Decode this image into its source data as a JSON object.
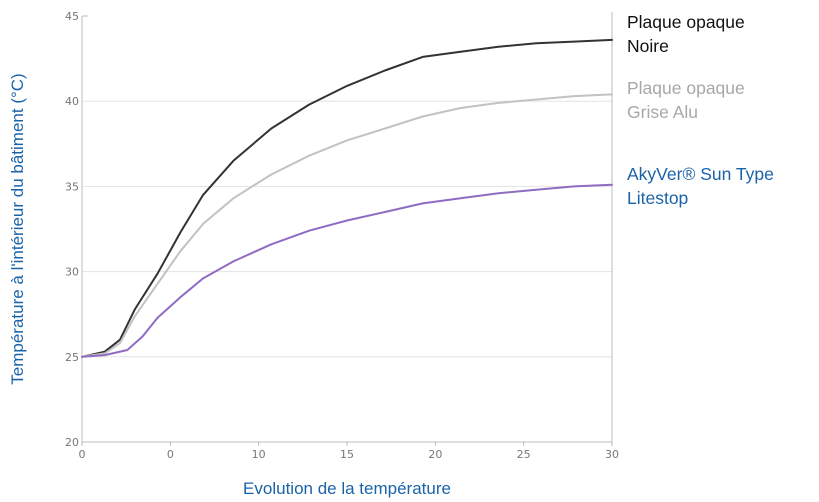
{
  "chart_data": {
    "type": "line",
    "xlabel": "Evolution de la température",
    "ylabel": "Température à l'intérieur du bâtiment (°C)",
    "xlim": [
      -5,
      30
    ],
    "ylim": [
      20,
      45
    ],
    "x_tick_labels": [
      "0",
      "0",
      "10",
      "15",
      "20",
      "25",
      "30"
    ],
    "y_tick_labels": [
      "20",
      "25",
      "30",
      "35",
      "40",
      "45"
    ],
    "grid": "horizontal",
    "legend_position": "right",
    "series": [
      {
        "name": "Plaque opaque Noire",
        "legend_lines": [
          "Plaque opaque",
          "Noire"
        ],
        "color": "#333333",
        "points": [
          [
            -5,
            25
          ],
          [
            -3.5,
            25.3
          ],
          [
            -2.5,
            26
          ],
          [
            -1.5,
            27.8
          ],
          [
            0,
            29.9
          ],
          [
            1.5,
            32.3
          ],
          [
            3,
            34.5
          ],
          [
            5,
            36.5
          ],
          [
            7.5,
            38.4
          ],
          [
            10,
            39.8
          ],
          [
            12.5,
            40.9
          ],
          [
            15,
            41.8
          ],
          [
            17.5,
            42.6
          ],
          [
            20,
            42.9
          ],
          [
            22.5,
            43.2
          ],
          [
            25,
            43.4
          ],
          [
            27.5,
            43.5
          ],
          [
            30,
            43.6
          ]
        ]
      },
      {
        "name": "Plaque opaque Grise Alu",
        "legend_lines": [
          "Plaque opaque",
          "Grise Alu"
        ],
        "color": "#c2c2c2",
        "points": [
          [
            -5,
            25
          ],
          [
            -3.5,
            25.2
          ],
          [
            -2.5,
            25.8
          ],
          [
            -1.5,
            27.4
          ],
          [
            0,
            29.3
          ],
          [
            1.5,
            31.2
          ],
          [
            3,
            32.8
          ],
          [
            5,
            34.3
          ],
          [
            7.5,
            35.7
          ],
          [
            10,
            36.8
          ],
          [
            12.5,
            37.7
          ],
          [
            15,
            38.4
          ],
          [
            17.5,
            39.1
          ],
          [
            20,
            39.6
          ],
          [
            22.5,
            39.9
          ],
          [
            25,
            40.1
          ],
          [
            27.5,
            40.3
          ],
          [
            30,
            40.4
          ]
        ]
      },
      {
        "name": "AkyVer® Sun Type Litestop",
        "legend_lines": [
          "AkyVer® Sun Type",
          "Litestop"
        ],
        "color": "#8f6cc4",
        "label_color": "#1a63a9",
        "points": [
          [
            -5,
            25
          ],
          [
            -3.5,
            25.1
          ],
          [
            -2,
            25.4
          ],
          [
            -1,
            26.2
          ],
          [
            0,
            27.3
          ],
          [
            1.5,
            28.5
          ],
          [
            3,
            29.6
          ],
          [
            5,
            30.6
          ],
          [
            7.5,
            31.6
          ],
          [
            10,
            32.4
          ],
          [
            12.5,
            33
          ],
          [
            15,
            33.5
          ],
          [
            17.5,
            34
          ],
          [
            20,
            34.3
          ],
          [
            22.5,
            34.6
          ],
          [
            25,
            34.8
          ],
          [
            27.5,
            35
          ],
          [
            30,
            35.1
          ]
        ]
      }
    ],
    "colors": {
      "axis_title": "#1a63a9",
      "grid": "#e3e3e3",
      "frame": "#bcbcbc"
    }
  }
}
